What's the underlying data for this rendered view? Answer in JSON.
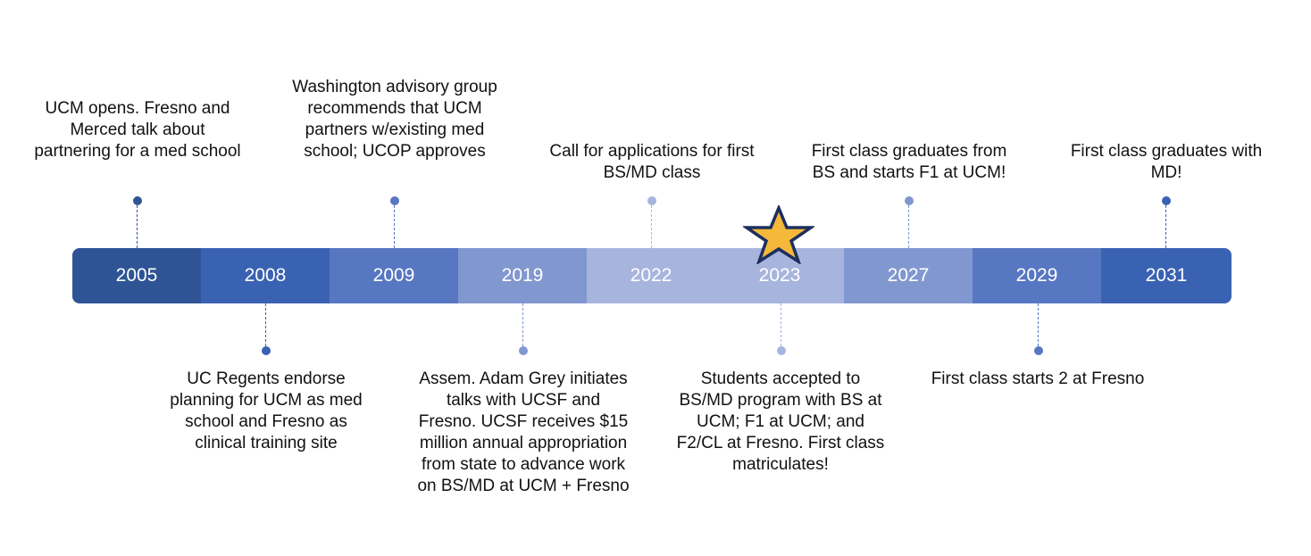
{
  "timeline": {
    "events": [
      {
        "year": "2005",
        "description": "UCM opens. Fresno and Merced talk about partnering for a med school",
        "color": "#2f5496"
      },
      {
        "year": "2008",
        "description": "UC Regents endorse planning for UCM as med school and Fresno as clinical training site",
        "color": "#3a62b3"
      },
      {
        "year": "2009",
        "description": "Washington advisory group recommends that UCM partners w/existing med school; UCOP approves",
        "color": "#5877c2"
      },
      {
        "year": "2019",
        "description": "Assem. Adam Grey initiates talks with UCSF and Fresno. UCSF receives $15 million annual appropriation from state to advance work on BS/MD at UCM + Fresno",
        "color": "#8197d0"
      },
      {
        "year": "2022",
        "description": "Call for applications for first BS/MD class",
        "color": "#a7b5de"
      },
      {
        "year": "2023",
        "description": "Students accepted to BS/MD program with BS at UCM; F1 at UCM; and F2/CL at Fresno. First class matriculates!",
        "color": "#a7b5de"
      },
      {
        "year": "2027",
        "description": "First class graduates from BS and starts F1 at UCM!",
        "color": "#8197d0"
      },
      {
        "year": "2029",
        "description": "First class starts 2 at Fresno",
        "color": "#5877c2"
      },
      {
        "year": "2031",
        "description": "First class graduates with MD!",
        "color": "#3a62b3"
      }
    ]
  },
  "current_marker": {
    "icon": "star-icon",
    "year": "2023",
    "fill": "#f6b83a",
    "stroke": "#1c2f5e"
  }
}
